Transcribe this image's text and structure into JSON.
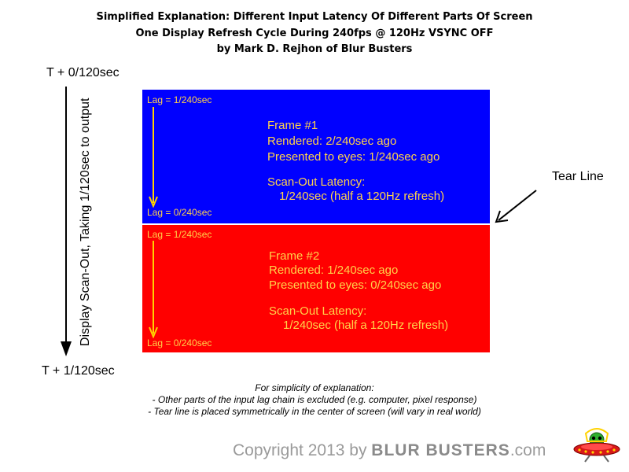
{
  "title": {
    "line1": "Simplified Explanation: Different Input Latency Of Different Parts Of Screen",
    "line2": "One Display Refresh Cycle During 240fps @ 120Hz VSYNC OFF",
    "line3": "by Mark D. Rejhon of Blur Busters"
  },
  "time": {
    "start": "T + 0/120sec",
    "end": "T + 1/120sec"
  },
  "scanout_label": "Display Scan-Out, Taking 1/120sec to output",
  "frames": [
    {
      "lag_top": "Lag = 1/240sec",
      "lag_bottom": "Lag = 0/240sec",
      "name": "Frame #1",
      "rendered": "Rendered: 2/240sec ago",
      "presented": "Presented to eyes: 1/240sec ago",
      "latency_title": "Scan-Out Latency:",
      "latency_value": "1/240sec (half a 120Hz refresh)",
      "color": "#0000ff"
    },
    {
      "lag_top": "Lag = 1/240sec",
      "lag_bottom": "Lag = 0/240sec",
      "name": "Frame #2",
      "rendered": "Rendered: 1/240sec ago",
      "presented": "Presented to eyes: 0/240sec ago",
      "latency_title": "Scan-Out Latency:",
      "latency_value": "1/240sec (half a 120Hz refresh)",
      "color": "#ff0000"
    }
  ],
  "tear_line_label": "Tear Line",
  "notes": [
    "For simplicity of explanation:",
    "- Other parts of the input lag chain is excluded (e.g. computer, pixel response)",
    "- Tear line is placed symmetrically in the center of screen (will vary in real world)"
  ],
  "copyright": {
    "prefix": "Copyright 2013 by",
    "brand": "BLUR BUSTERS",
    "suffix": ".com"
  },
  "colors": {
    "text_on_frame": "#ffd24a",
    "arrow_yellow": "#ffd200"
  }
}
